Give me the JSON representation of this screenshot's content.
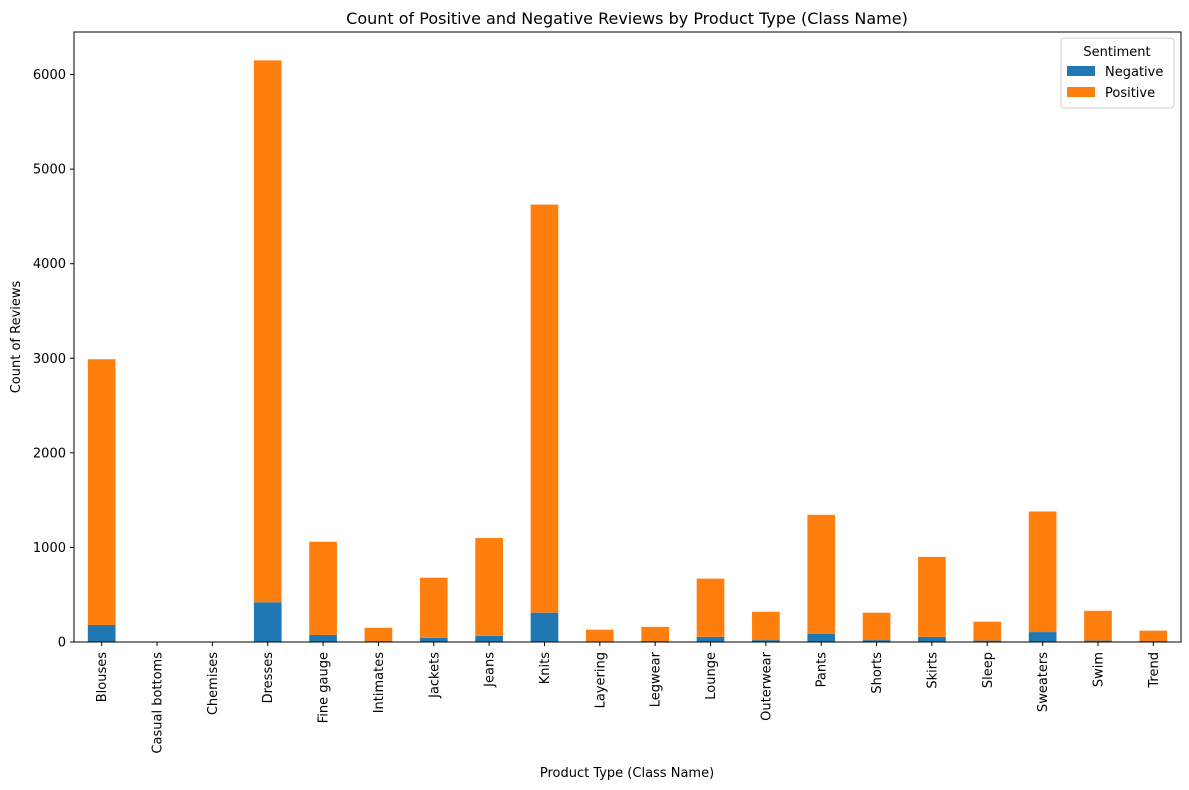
{
  "chart_data": {
    "type": "bar",
    "stacked": true,
    "title": "Count of Positive and Negative Reviews by Product Type (Class Name)",
    "xlabel": "Product Type (Class Name)",
    "ylabel": "Count of Reviews",
    "ylim": [
      0,
      6450
    ],
    "yticks": [
      0,
      1000,
      2000,
      3000,
      4000,
      5000,
      6000
    ],
    "ytick_labels": [
      "0",
      "1000",
      "2000",
      "3000",
      "4000",
      "5000",
      "6000"
    ],
    "grid": false,
    "legend": {
      "title": "Sentiment",
      "placement": "top-right"
    },
    "categories": [
      "Blouses",
      "Casual bottoms",
      "Chemises",
      "Dresses",
      "Fine gauge",
      "Intimates",
      "Jackets",
      "Jeans",
      "Knits",
      "Layering",
      "Legwear",
      "Lounge",
      "Outerwear",
      "Pants",
      "Shorts",
      "Skirts",
      "Sleep",
      "Sweaters",
      "Swim",
      "Trend"
    ],
    "series": [
      {
        "name": "Negative",
        "color": "#1f77b4",
        "values": [
          180,
          0,
          0,
          420,
          75,
          10,
          45,
          65,
          310,
          5,
          10,
          55,
          20,
          85,
          20,
          55,
          15,
          105,
          15,
          10
        ]
      },
      {
        "name": "Positive",
        "color": "#ff7f0e",
        "values": [
          2810,
          2,
          1,
          5730,
          985,
          140,
          635,
          1035,
          4315,
          125,
          150,
          615,
          300,
          1260,
          290,
          845,
          200,
          1275,
          315,
          110
        ]
      }
    ]
  }
}
